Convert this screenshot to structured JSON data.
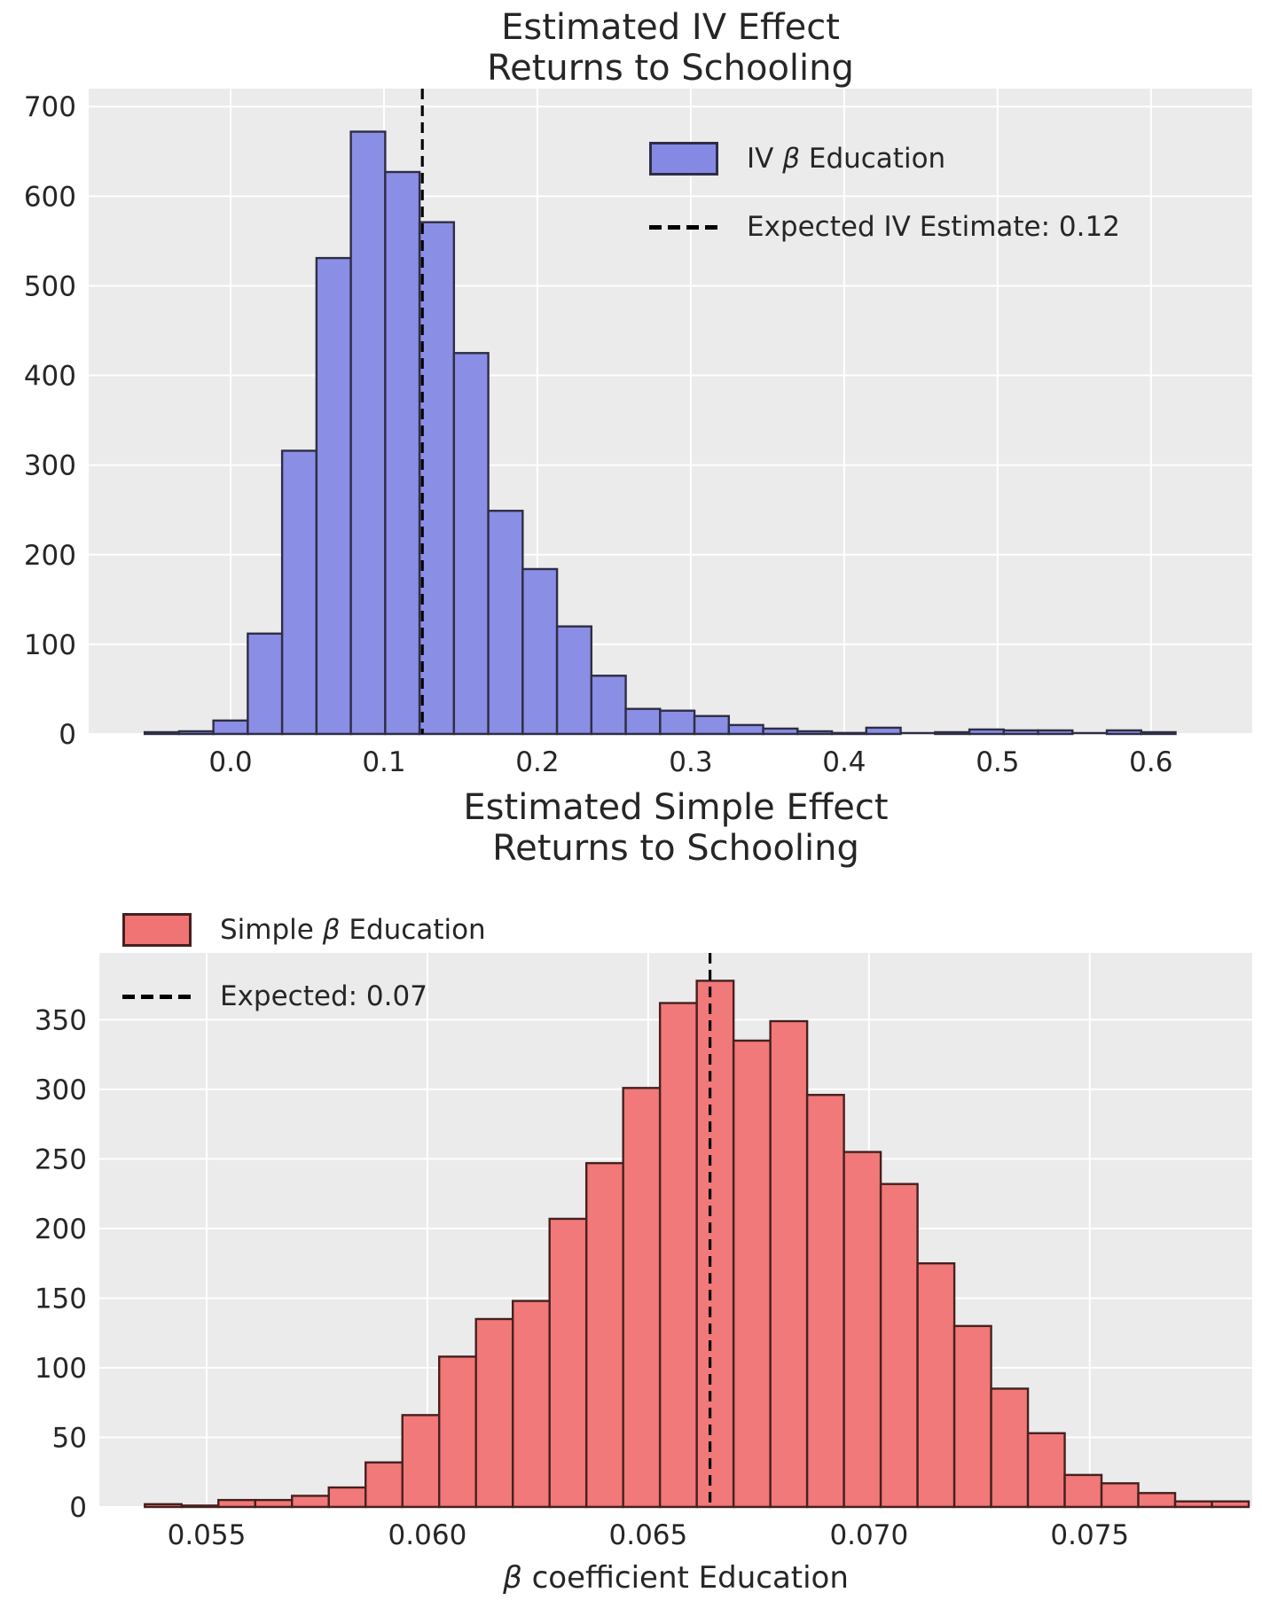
{
  "figure": {
    "background": "#ffffff",
    "panel_background": "#ebebeb",
    "grid_color": "#ffffff",
    "text_color": "#262626"
  },
  "chart_data": [
    {
      "type": "bar",
      "subtype": "histogram",
      "title_line1": "Estimated IV Effect",
      "title_line2": "Returns to Schooling",
      "xlabel": "",
      "ylabel": "",
      "bar_color": "#8689e4",
      "bar_edge_color": "#2e2e45",
      "bin_start": -0.056,
      "bin_width": 0.0224,
      "counts": [
        2,
        3,
        15,
        112,
        316,
        531,
        672,
        627,
        571,
        425,
        249,
        184,
        120,
        65,
        28,
        26,
        20,
        10,
        6,
        3,
        1,
        7,
        0,
        2,
        5,
        4,
        4,
        0,
        4,
        2
      ],
      "expected_line": {
        "x": 0.125,
        "color": "#000000",
        "style": "dashed"
      },
      "legend": [
        {
          "label": "IV β Education",
          "marker": "patch"
        },
        {
          "label": "Expected IV Estimate: 0.12",
          "marker": "dashed-line"
        }
      ],
      "legend_position": "upper right",
      "xlim": [
        -0.0925,
        0.666
      ],
      "ylim": [
        0,
        720
      ],
      "xticks": [
        0.0,
        0.1,
        0.2,
        0.3,
        0.4,
        0.5,
        0.6
      ],
      "xtick_labels": [
        "0.0",
        "0.1",
        "0.2",
        "0.3",
        "0.4",
        "0.5",
        "0.6"
      ],
      "yticks": [
        0,
        100,
        200,
        300,
        400,
        500,
        600,
        700
      ],
      "ytick_labels": [
        "0",
        "100",
        "200",
        "300",
        "400",
        "500",
        "600",
        "700"
      ],
      "grid": true
    },
    {
      "type": "bar",
      "subtype": "histogram",
      "title_line1": "Estimated Simple Effect",
      "title_line2": "Returns to Schooling",
      "xlabel": "β coefficient Education",
      "ylabel": "",
      "bar_color": "#f07474",
      "bar_edge_color": "#46201f",
      "bin_start": 0.0536,
      "bin_width": 0.00083333,
      "counts": [
        2,
        1,
        5,
        5,
        8,
        14,
        32,
        66,
        108,
        135,
        148,
        207,
        247,
        301,
        362,
        378,
        335,
        349,
        296,
        255,
        232,
        175,
        130,
        85,
        53,
        23,
        17,
        10,
        4,
        4
      ],
      "expected_line": {
        "x": 0.0664,
        "color": "#000000",
        "style": "dashed"
      },
      "legend": [
        {
          "label": "Simple β Education",
          "marker": "patch"
        },
        {
          "label": "Expected: 0.07",
          "marker": "dashed-line"
        }
      ],
      "legend_position": "upper left",
      "xlim": [
        0.05257,
        0.07868
      ],
      "ylim": [
        0,
        398
      ],
      "xticks": [
        0.055,
        0.06,
        0.065,
        0.07,
        0.075
      ],
      "xtick_labels": [
        "0.055",
        "0.060",
        "0.065",
        "0.070",
        "0.075"
      ],
      "yticks": [
        0,
        50,
        100,
        150,
        200,
        250,
        300,
        350
      ],
      "ytick_labels": [
        "0",
        "50",
        "100",
        "150",
        "200",
        "250",
        "300",
        "350"
      ],
      "grid": true
    }
  ]
}
